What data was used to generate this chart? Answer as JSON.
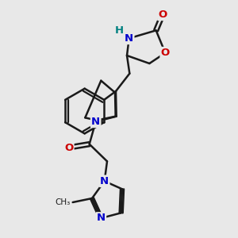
{
  "bg_color": "#e8e8e8",
  "bond_color": "#1a1a1a",
  "bond_width": 1.8,
  "atom_colors": {
    "N": "#0000cc",
    "O": "#cc0000",
    "H": "#008080",
    "C": "#1a1a1a"
  },
  "font_size": 9.5,
  "fig_size": [
    3.0,
    3.0
  ],
  "dpi": 100
}
